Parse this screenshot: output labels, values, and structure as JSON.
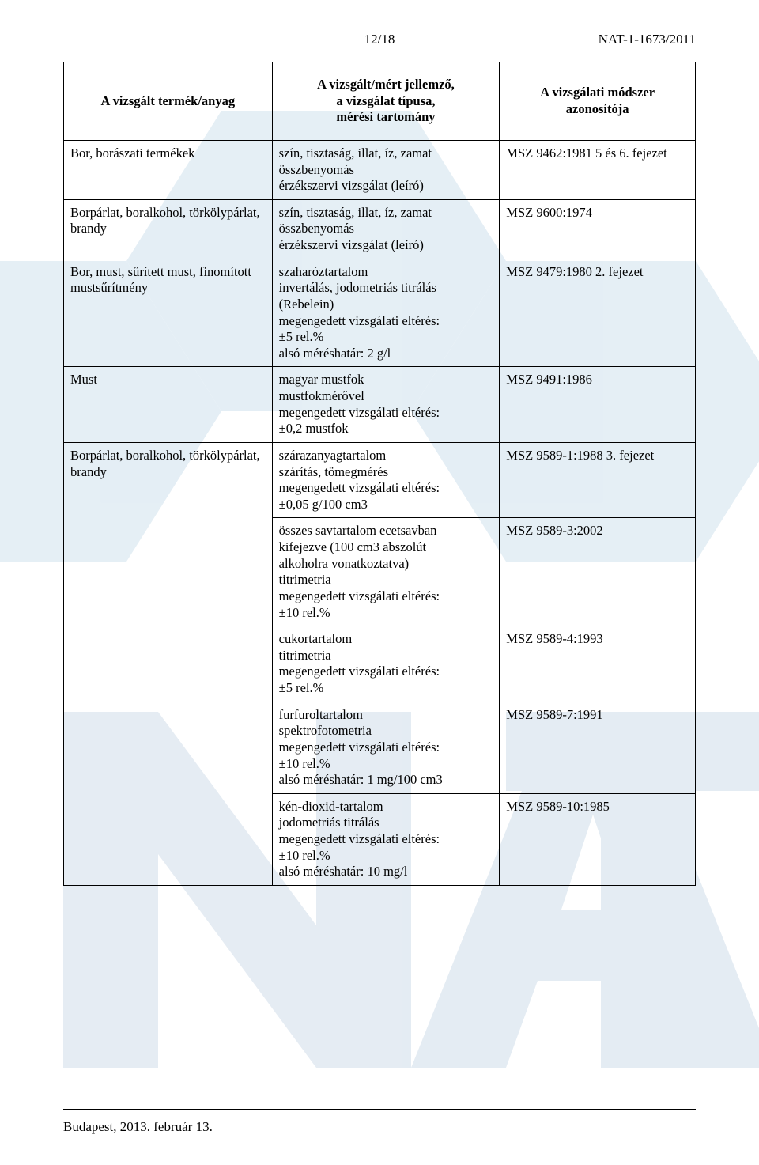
{
  "header": {
    "page_num": "12/18",
    "doc_ref": "NAT-1-1673/2011"
  },
  "columns": {
    "c1": "A vizsgált termék/anyag",
    "c2": "A vizsgált/mért jellemző,\na vizsgálat típusa,\nmérési tartomány",
    "c3": "A vizsgálati módszer\nazonosítója"
  },
  "rows": [
    {
      "product": "Bor, borászati termékek",
      "method": "szín, tisztaság, illat, íz, zamat\nösszbenyomás\nérzékszervi vizsgálat (leíró)",
      "standard": "MSZ 9462:1981 5 és 6. fejezet"
    },
    {
      "product": "Borpárlat, boralkohol, törkölypárlat,\nbrandy",
      "method": "szín, tisztaság, illat, íz, zamat\nösszbenyomás\nérzékszervi vizsgálat (leíró)",
      "standard": "MSZ 9600:1974"
    },
    {
      "product": "Bor, must, sűrített must, finomított\nmustsűrítmény",
      "method": "szaharóztartalom\ninvertálás, jodometriás titrálás\n(Rebelein)\nmegengedett vizsgálati eltérés:\n±5 rel.%\nalsó méréshatár: 2 g/l",
      "standard": "MSZ 9479:1980 2. fejezet"
    },
    {
      "product": "Must",
      "method": "magyar mustfok\nmustfokmérővel\nmegengedett vizsgálati eltérés:\n±0,2 mustfok",
      "standard": "MSZ 9491:1986"
    },
    {
      "product": "Borpárlat, boralkohol, törkölypárlat,\nbrandy",
      "rowspan": 5,
      "method": "szárazanyagtartalom\nszárítás, tömegmérés\nmegengedett vizsgálati eltérés:\n±0,05 g/100 cm3",
      "standard": "MSZ 9589-1:1988 3. fejezet"
    },
    {
      "method": "összes savtartalom ecetsavban\nkifejezve (100 cm3 abszolút\nalkoholra vonatkoztatva)\ntitrimetria\nmegengedett vizsgálati eltérés:\n±10 rel.%",
      "standard": "MSZ 9589-3:2002"
    },
    {
      "method": "cukortartalom\ntitrimetria\nmegengedett vizsgálati eltérés:\n±5 rel.%",
      "standard": "MSZ 9589-4:1993"
    },
    {
      "method": "furfuroltartalom\nspektrofotometria\nmegengedett vizsgálati eltérés:\n±10 rel.%\nalsó méréshatár: 1 mg/100 cm3",
      "standard": "MSZ 9589-7:1991"
    },
    {
      "method": "kén-dioxid-tartalom\njodometriás titrálás\nmegengedett vizsgálati eltérés:\n±10 rel.%\nalsó méréshatár: 10 mg/l",
      "standard": "MSZ 9589-10:1985"
    }
  ],
  "footer": "Budapest, 2013. február 13.",
  "watermark": {
    "fill": "#cfe1ed",
    "letter_fill": "#dfe9f1"
  }
}
